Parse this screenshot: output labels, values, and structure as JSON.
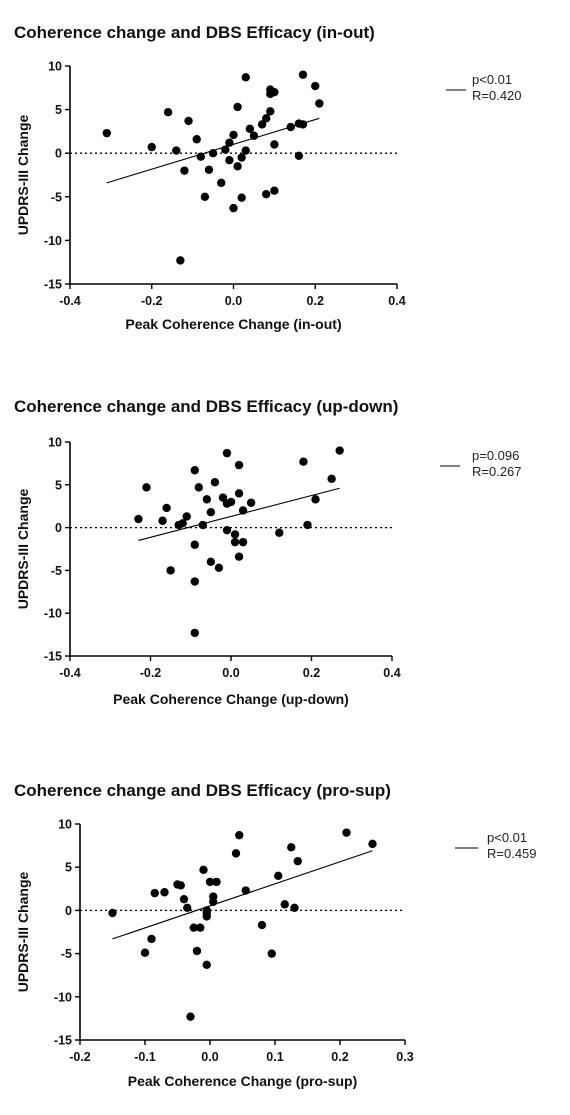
{
  "chart_data": [
    {
      "type": "scatter",
      "title": "Coherence change and DBS Efficacy (in-out)",
      "xlabel": "Peak Coherence Change (in-out)",
      "ylabel": "UPDRS-III Change",
      "xlim": [
        -0.4,
        0.4
      ],
      "ylim": [
        -15,
        10
      ],
      "xticks": [
        -0.4,
        -0.2,
        0.0,
        0.2,
        0.4
      ],
      "xtick_labels": [
        "-0.4",
        "-0.2",
        "0.0",
        "0.2",
        "0.4"
      ],
      "yticks": [
        -15,
        -10,
        -5,
        0,
        5,
        10
      ],
      "ytick_labels": [
        "-15",
        "-10",
        "-5",
        "0",
        "5",
        "10"
      ],
      "zero_reference_line": "dotted",
      "legend": {
        "placement": "top-right",
        "lines": [
          "p<0.01",
          "R=0.420"
        ]
      },
      "fit_line": {
        "x": [
          -0.31,
          0.21
        ],
        "y": [
          -3.4,
          4.0
        ]
      },
      "points": {
        "x": [
          -0.31,
          -0.2,
          -0.16,
          -0.14,
          -0.13,
          -0.12,
          -0.11,
          -0.09,
          -0.08,
          -0.07,
          -0.06,
          -0.05,
          -0.03,
          -0.02,
          -0.01,
          -0.01,
          0.0,
          0.0,
          0.01,
          0.01,
          0.02,
          0.02,
          0.03,
          0.03,
          0.04,
          0.05,
          0.07,
          0.08,
          0.08,
          0.09,
          0.09,
          0.09,
          0.1,
          0.1,
          0.1,
          0.14,
          0.16,
          0.16,
          0.17,
          0.17,
          0.2,
          0.21
        ],
        "y": [
          2.3,
          0.7,
          4.7,
          0.3,
          -12.3,
          -2.0,
          3.7,
          1.6,
          -0.4,
          -5.0,
          -1.9,
          0.0,
          -3.4,
          0.4,
          -0.8,
          1.2,
          2.1,
          -6.3,
          -1.5,
          5.3,
          -0.5,
          -5.1,
          0.3,
          8.7,
          2.8,
          2.0,
          3.3,
          4.0,
          -4.7,
          4.8,
          7.3,
          6.8,
          -4.3,
          1.0,
          7.0,
          3.0,
          3.4,
          -0.3,
          9.0,
          3.3,
          7.7,
          5.7
        ]
      }
    },
    {
      "type": "scatter",
      "title": "Coherence change and DBS Efficacy (up-down)",
      "xlabel": "Peak Coherence Change (up-down)",
      "ylabel": "UPDRS-III Change",
      "xlim": [
        -0.4,
        0.4
      ],
      "ylim": [
        -15,
        10
      ],
      "xticks": [
        -0.4,
        -0.2,
        0.0,
        0.2,
        0.4
      ],
      "xtick_labels": [
        "-0.4",
        "-0.2",
        "0.0",
        "0.2",
        "0.4"
      ],
      "yticks": [
        -15,
        -10,
        -5,
        0,
        5,
        10
      ],
      "ytick_labels": [
        "-15",
        "-10",
        "-5",
        "0",
        "5",
        "10"
      ],
      "zero_reference_line": "dotted",
      "legend": {
        "placement": "top-right",
        "lines": [
          "p=0.096",
          "R=0.267"
        ]
      },
      "fit_line": {
        "x": [
          -0.23,
          0.27
        ],
        "y": [
          -1.5,
          4.6
        ]
      },
      "points": {
        "x": [
          -0.23,
          -0.21,
          -0.17,
          -0.16,
          -0.15,
          -0.13,
          -0.12,
          -0.11,
          -0.09,
          -0.09,
          -0.09,
          -0.09,
          -0.08,
          -0.07,
          -0.06,
          -0.05,
          -0.05,
          -0.04,
          -0.03,
          -0.02,
          -0.01,
          -0.01,
          -0.01,
          0.0,
          0.01,
          0.01,
          0.02,
          0.02,
          0.02,
          0.03,
          0.03,
          0.05,
          0.12,
          0.18,
          0.19,
          0.21,
          0.25,
          0.27
        ],
        "y": [
          1.0,
          4.7,
          0.8,
          2.3,
          -5.0,
          0.3,
          0.5,
          1.3,
          6.7,
          -2.0,
          -6.3,
          -12.3,
          4.7,
          0.3,
          3.3,
          1.8,
          -4.0,
          5.3,
          -4.7,
          3.5,
          8.7,
          -0.3,
          2.8,
          3.0,
          -0.8,
          -1.7,
          7.3,
          4.0,
          -3.4,
          2.0,
          -1.7,
          2.9,
          -0.6,
          7.7,
          0.3,
          3.3,
          5.7,
          9.0
        ]
      }
    },
    {
      "type": "scatter",
      "title": "Coherence change and DBS Efficacy (pro-sup)",
      "xlabel": "Peak Coherence Change (pro-sup)",
      "ylabel": "UPDRS-III Change",
      "xlim": [
        -0.2,
        0.3
      ],
      "ylim": [
        -15,
        10
      ],
      "xticks": [
        -0.2,
        -0.1,
        0.0,
        0.1,
        0.2,
        0.3
      ],
      "xtick_labels": [
        "-0.2",
        "-0.1",
        "0.0",
        "0.1",
        "0.2",
        "0.3"
      ],
      "yticks": [
        -15,
        -10,
        -5,
        0,
        5,
        10
      ],
      "ytick_labels": [
        "-15",
        "-10",
        "-5",
        "0",
        "5",
        "10"
      ],
      "zero_reference_line": "dotted",
      "legend": {
        "placement": "top-right",
        "lines": [
          "p<0.01",
          "R=0.459"
        ]
      },
      "fit_line": {
        "x": [
          -0.15,
          0.25
        ],
        "y": [
          -3.3,
          6.9
        ]
      },
      "points": {
        "x": [
          -0.15,
          -0.1,
          -0.09,
          -0.085,
          -0.07,
          -0.05,
          -0.045,
          -0.04,
          -0.035,
          -0.03,
          -0.025,
          -0.02,
          -0.015,
          -0.01,
          -0.005,
          -0.005,
          -0.005,
          -0.005,
          0.0,
          0.005,
          0.005,
          0.01,
          0.04,
          0.045,
          0.055,
          0.08,
          0.095,
          0.105,
          0.115,
          0.125,
          0.13,
          0.135,
          0.21,
          0.25
        ],
        "y": [
          -0.3,
          -4.9,
          -3.3,
          2.0,
          2.1,
          3.0,
          2.9,
          1.3,
          0.3,
          -12.3,
          -2.0,
          -4.7,
          -2.0,
          4.7,
          -0.7,
          -0.3,
          -6.3,
          0.0,
          3.3,
          1.6,
          1.0,
          3.3,
          6.6,
          8.7,
          2.3,
          -1.7,
          -5.0,
          4.0,
          0.7,
          7.3,
          0.3,
          5.7,
          9.0,
          7.7
        ]
      }
    }
  ]
}
